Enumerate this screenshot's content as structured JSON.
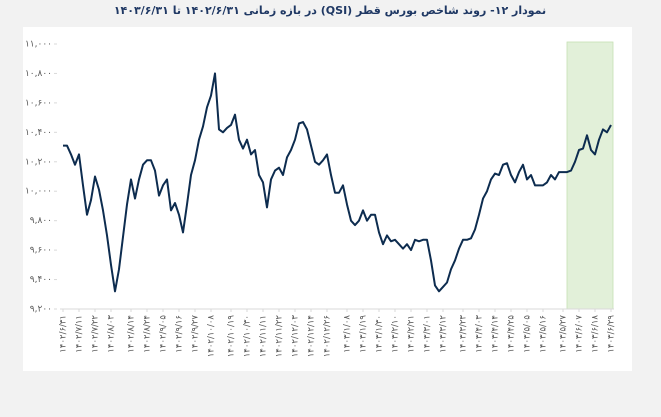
{
  "chart_data": {
    "type": "line",
    "title": "نمودار ۱۲- روند شاخص بورس قطر (QSI) در بازه زمانی ۱۴۰۲/۶/۳۱ تا ۱۴۰۳/۶/۳۱",
    "color": "#0d2c4f",
    "highlight_color": "#e2f0d9",
    "highlight_range": [
      126,
      137
    ],
    "xlim": [
      0,
      137
    ],
    "ylim": [
      9200,
      11000
    ],
    "yticks": [
      {
        "value": 9200,
        "label": "۹,۲۰۰"
      },
      {
        "value": 9400,
        "label": "۹,۴۰۰"
      },
      {
        "value": 9600,
        "label": "۹,۶۰۰"
      },
      {
        "value": 9800,
        "label": "۹,۸۰۰"
      },
      {
        "value": 10000,
        "label": "۱۰,۰۰۰"
      },
      {
        "value": 10200,
        "label": "۱۰,۲۰۰"
      },
      {
        "value": 10400,
        "label": "۱۰,۴۰۰"
      },
      {
        "value": 10600,
        "label": "۱۰,۶۰۰"
      },
      {
        "value": 10800,
        "label": "۱۰,۸۰۰"
      },
      {
        "value": 11000,
        "label": "۱۱,۰۰۰"
      }
    ],
    "xticks": [
      {
        "value": 0,
        "label": "۱۴۰۲/۶/۳۱"
      },
      {
        "value": 4,
        "label": "۱۴۰۲/۷/۱۱"
      },
      {
        "value": 8,
        "label": "۱۴۰۲/۷/۲۲"
      },
      {
        "value": 12,
        "label": "۱۴۰۲/۸/۰۳"
      },
      {
        "value": 17,
        "label": "۱۴۰۲/۸/۱۴"
      },
      {
        "value": 21,
        "label": "۱۴۰۲/۸/۲۴"
      },
      {
        "value": 25,
        "label": "۱۴۰۲/۹/۰۵"
      },
      {
        "value": 29,
        "label": "۱۴۰۲/۹/۱۶"
      },
      {
        "value": 33,
        "label": "۱۴۰۲/۹/۲۷"
      },
      {
        "value": 37,
        "label": "۱۴۰۲/۱۰/۰۸"
      },
      {
        "value": 42,
        "label": "۱۴۰۲/۱۰/۱۹"
      },
      {
        "value": 46,
        "label": "۱۴۰۲/۱۰/۳۰"
      },
      {
        "value": 50,
        "label": "۱۴۰۲/۱۱/۱۱"
      },
      {
        "value": 54,
        "label": "۱۴۰۲/۱۱/۲۲"
      },
      {
        "value": 58,
        "label": "۱۴۰۲/۱۲/۰۳"
      },
      {
        "value": 62,
        "label": "۱۴۰۲/۱۲/۱۴"
      },
      {
        "value": 66,
        "label": "۱۴۰۲/۱۲/۲۶"
      },
      {
        "value": 71,
        "label": "۱۴۰۳/۱/۰۸"
      },
      {
        "value": 75,
        "label": "۱۴۰۳/۱/۱۹"
      },
      {
        "value": 79,
        "label": "۱۴۰۳/۱/۳۰"
      },
      {
        "value": 83,
        "label": "۱۴۰۳/۲/۱۰"
      },
      {
        "value": 87,
        "label": "۱۴۰۳/۲/۲۱"
      },
      {
        "value": 91,
        "label": "۱۴۰۳/۳/۰۱"
      },
      {
        "value": 95,
        "label": "۱۴۰۳/۳/۱۲"
      },
      {
        "value": 100,
        "label": "۱۴۰۳/۳/۲۳"
      },
      {
        "value": 104,
        "label": "۱۴۰۳/۴/۰۳"
      },
      {
        "value": 108,
        "label": "۱۴۰۳/۴/۱۴"
      },
      {
        "value": 112,
        "label": "۱۴۰۳/۴/۲۵"
      },
      {
        "value": 116,
        "label": "۱۴۰۳/۵/۰۵"
      },
      {
        "value": 120,
        "label": "۱۴۰۳/۵/۱۶"
      },
      {
        "value": 125,
        "label": "۱۴۰۳/۵/۲۷"
      },
      {
        "value": 129,
        "label": "۱۴۰۳/۶/۰۷"
      },
      {
        "value": 133,
        "label": "۱۴۰۳/۶/۱۸"
      },
      {
        "value": 137,
        "label": "۱۴۰۳/۶/۲۹"
      }
    ],
    "values": [
      10310,
      10310,
      10250,
      10180,
      10250,
      10040,
      9840,
      9940,
      10100,
      10010,
      9870,
      9700,
      9500,
      9320,
      9470,
      9690,
      9910,
      10080,
      9950,
      10080,
      10180,
      10210,
      10210,
      10140,
      9970,
      10040,
      10080,
      9870,
      9920,
      9840,
      9720,
      9910,
      10110,
      10210,
      10350,
      10440,
      10570,
      10650,
      10800,
      10420,
      10400,
      10430,
      10450,
      10520,
      10350,
      10290,
      10350,
      10250,
      10280,
      10110,
      10060,
      9890,
      10080,
      10140,
      10160,
      10110,
      10230,
      10280,
      10350,
      10460,
      10470,
      10420,
      10310,
      10200,
      10180,
      10210,
      10250,
      10110,
      9990,
      9990,
      10040,
      9910,
      9800,
      9770,
      9800,
      9870,
      9800,
      9840,
      9840,
      9720,
      9640,
      9700,
      9660,
      9670,
      9640,
      9610,
      9640,
      9600,
      9670,
      9660,
      9670,
      9670,
      9530,
      9360,
      9320,
      9350,
      9380,
      9470,
      9530,
      9610,
      9670,
      9670,
      9680,
      9740,
      9840,
      9950,
      10000,
      10080,
      10120,
      10110,
      10180,
      10190,
      10110,
      10060,
      10130,
      10180,
      10080,
      10110,
      10040,
      10040,
      10040,
      10060,
      10110,
      10080,
      10130,
      10130,
      10130,
      10140,
      10200,
      10280,
      10290,
      10380,
      10280,
      10250,
      10350,
      10420,
      10400,
      10450
    ]
  }
}
